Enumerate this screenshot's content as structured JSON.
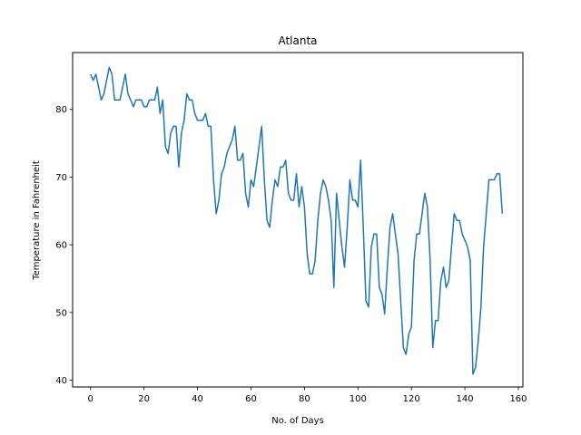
{
  "chart_data": {
    "type": "line",
    "title": "Atlanta",
    "xlabel": "No. of Days",
    "ylabel": "Temperature in Fahrenheit",
    "xlim": [
      -6.7,
      161.7
    ],
    "ylim": [
      39.0,
      88.4
    ],
    "xticks": [
      0,
      20,
      40,
      60,
      80,
      100,
      120,
      140,
      160
    ],
    "yticks": [
      40,
      50,
      60,
      70,
      80
    ],
    "grid": false,
    "series": [
      {
        "color": "#1f77b4",
        "x": [
          0,
          1,
          2,
          3,
          4,
          5,
          6,
          7,
          8,
          9,
          10,
          11,
          12,
          13,
          14,
          15,
          16,
          17,
          18,
          19,
          20,
          21,
          22,
          23,
          24,
          25,
          26,
          27,
          28,
          29,
          30,
          31,
          32,
          33,
          34,
          35,
          36,
          37,
          38,
          39,
          40,
          41,
          42,
          43,
          44,
          45,
          46,
          47,
          48,
          49,
          50,
          51,
          52,
          53,
          54,
          55,
          56,
          57,
          58,
          59,
          60,
          61,
          62,
          63,
          64,
          65,
          66,
          67,
          68,
          69,
          70,
          71,
          72,
          73,
          74,
          75,
          76,
          77,
          78,
          79,
          80,
          81,
          82,
          83,
          84,
          85,
          86,
          87,
          88,
          89,
          90,
          91,
          92,
          93,
          94,
          95,
          96,
          97,
          98,
          99,
          100,
          101,
          102,
          103,
          104,
          105,
          106,
          107,
          108,
          109,
          110,
          111,
          112,
          113,
          114,
          115,
          116,
          117,
          118,
          119,
          120,
          121,
          122,
          123,
          124,
          125,
          126,
          127,
          128,
          129,
          130,
          131,
          132,
          133,
          134,
          135,
          136,
          137,
          138,
          139,
          140,
          141,
          142,
          143,
          144,
          145,
          146,
          147,
          148,
          149,
          150,
          151,
          152,
          153,
          154
        ],
        "y": [
          85.2,
          84.3,
          85.2,
          83.3,
          81.4,
          82.3,
          84.3,
          86.2,
          85.2,
          81.4,
          81.4,
          81.4,
          83.3,
          85.2,
          82.3,
          81.4,
          80.4,
          81.4,
          81.4,
          81.4,
          80.4,
          80.4,
          81.4,
          81.4,
          81.4,
          83.3,
          79.4,
          81.4,
          74.5,
          73.5,
          76.5,
          77.5,
          77.5,
          71.5,
          76.5,
          78.4,
          82.3,
          81.4,
          81.4,
          79.4,
          78.4,
          78.4,
          78.4,
          79.4,
          77.5,
          77.5,
          69.6,
          64.6,
          66.6,
          70.5,
          71.5,
          73.5,
          74.5,
          75.5,
          77.5,
          72.5,
          72.5,
          73.5,
          67.6,
          65.6,
          69.6,
          68.6,
          71.5,
          74.5,
          77.5,
          69.6,
          63.6,
          62.6,
          66.6,
          69.6,
          68.6,
          71.5,
          71.5,
          72.5,
          67.6,
          66.6,
          66.6,
          70.5,
          65.6,
          68.6,
          65.6,
          58.7,
          55.7,
          55.7,
          57.7,
          63.6,
          67.6,
          69.6,
          68.6,
          66.6,
          63.6,
          53.7,
          67.6,
          63.6,
          59.7,
          56.7,
          62.6,
          69.6,
          66.6,
          66.6,
          65.6,
          72.5,
          62.6,
          51.7,
          50.8,
          59.7,
          61.6,
          61.6,
          53.7,
          52.7,
          49.8,
          56.7,
          62.6,
          64.6,
          61.6,
          58.7,
          51.7,
          44.8,
          43.8,
          46.8,
          47.8,
          57.7,
          61.6,
          61.6,
          64.6,
          67.6,
          65.6,
          57.7,
          44.8,
          48.8,
          48.8,
          54.7,
          56.7,
          53.7,
          54.7,
          59.7,
          64.6,
          63.6,
          63.6,
          61.6,
          60.7,
          59.7,
          57.7,
          40.9,
          41.9,
          45.8,
          50.8,
          59.7,
          64.6,
          69.6,
          69.6,
          69.6,
          70.5,
          70.5,
          64.6
        ]
      }
    ]
  }
}
